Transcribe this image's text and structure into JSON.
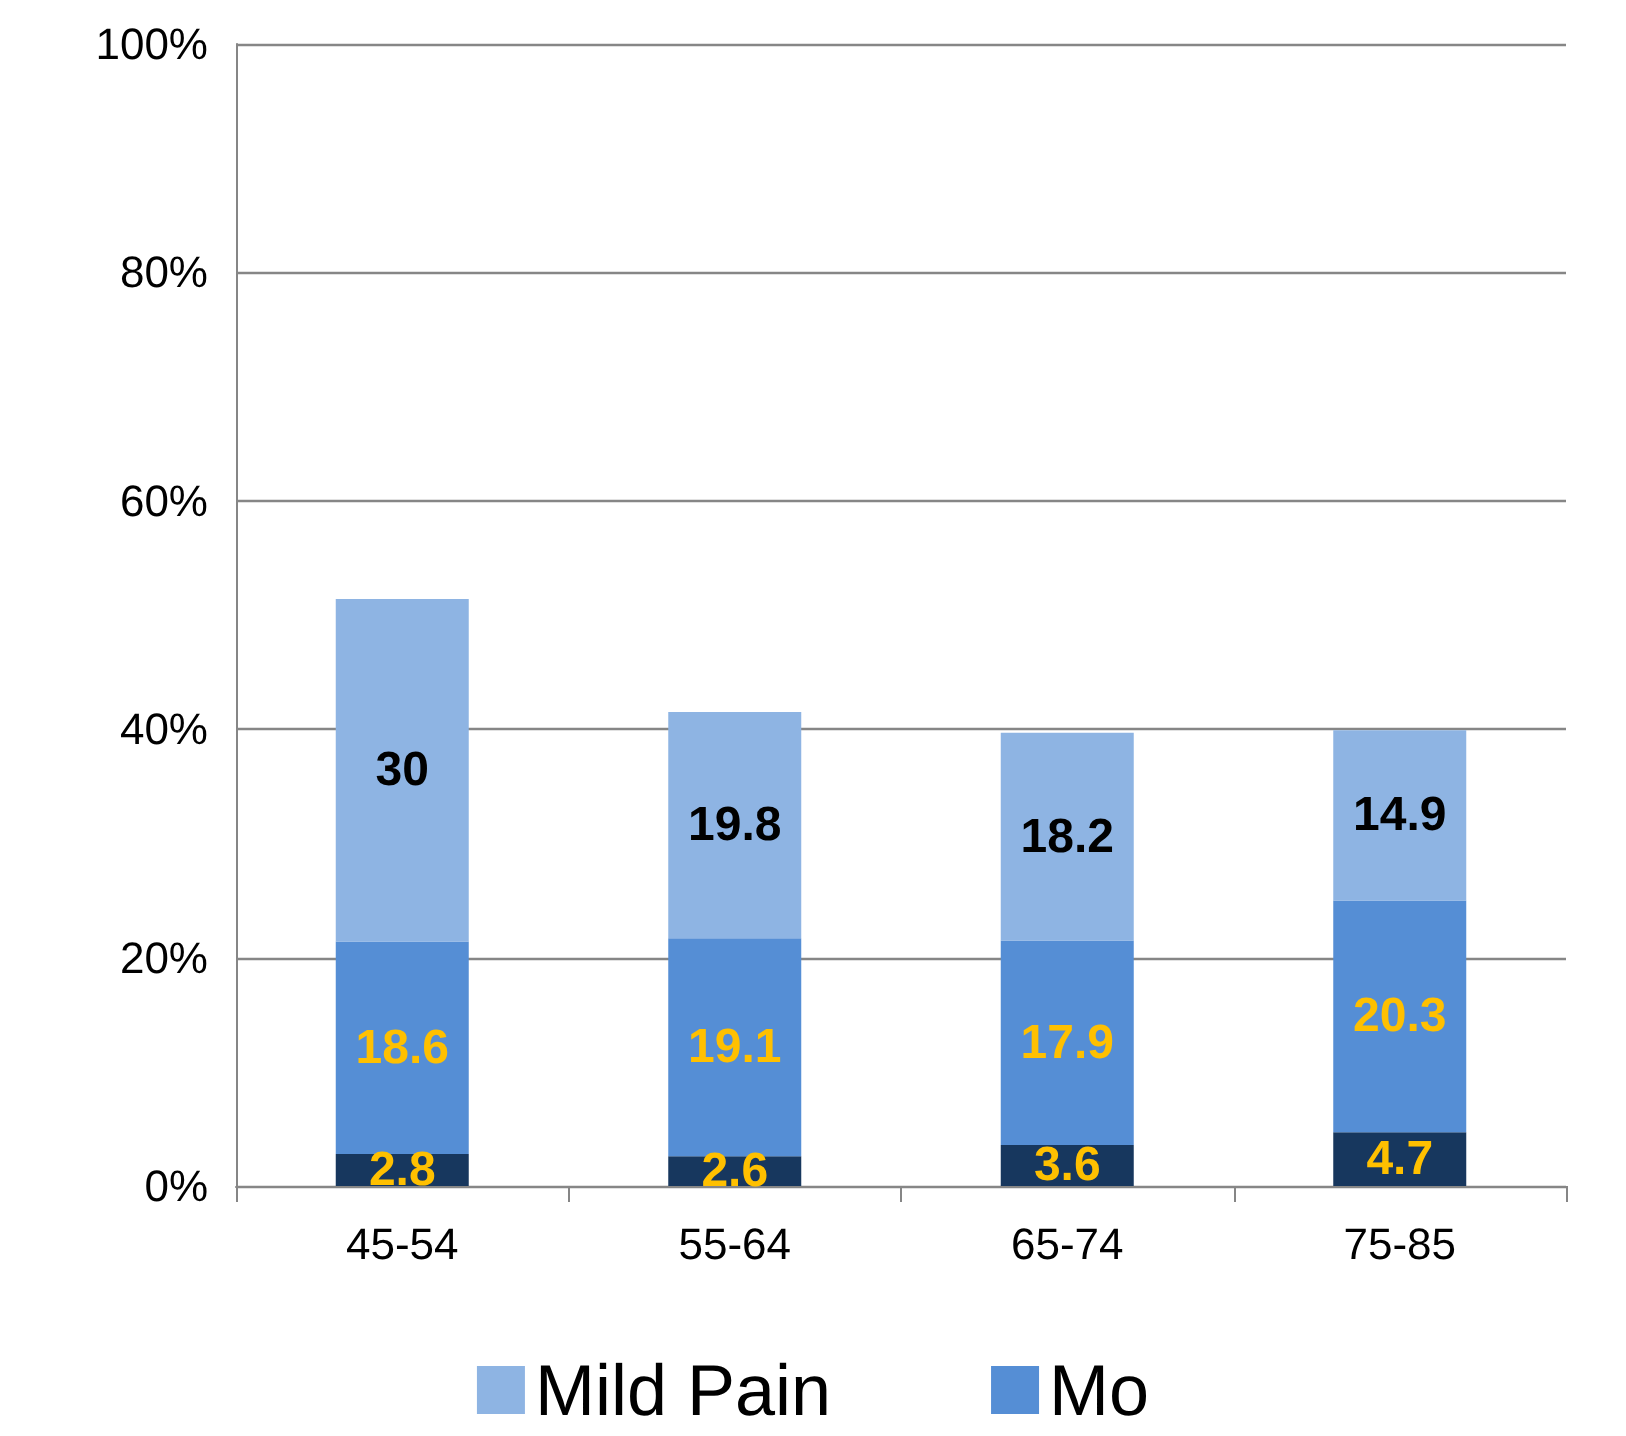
{
  "chart_data": {
    "type": "bar",
    "stacked": true,
    "categories": [
      "45-54",
      "55-64",
      "65-74",
      "75-85"
    ],
    "series": [
      {
        "color": "#17375e",
        "values": [
          2.8,
          2.6,
          3.6,
          4.7
        ]
      },
      {
        "name": "Mo",
        "color": "#558ed5",
        "values": [
          18.6,
          19.1,
          17.9,
          20.3
        ]
      },
      {
        "name": "Mild Pain",
        "color": "#8eb4e3",
        "values": [
          30,
          19.8,
          18.2,
          14.9
        ]
      }
    ],
    "ylim": [
      0,
      100
    ],
    "yticks": [
      {
        "value": 0,
        "label": "0%"
      },
      {
        "value": 20,
        "label": "20%"
      },
      {
        "value": 40,
        "label": "40%"
      },
      {
        "value": 60,
        "label": "60%"
      },
      {
        "value": 80,
        "label": "80%"
      },
      {
        "value": 100,
        "label": "100%"
      }
    ],
    "grid": "y",
    "legend": "bottom",
    "data_labels": true
  }
}
